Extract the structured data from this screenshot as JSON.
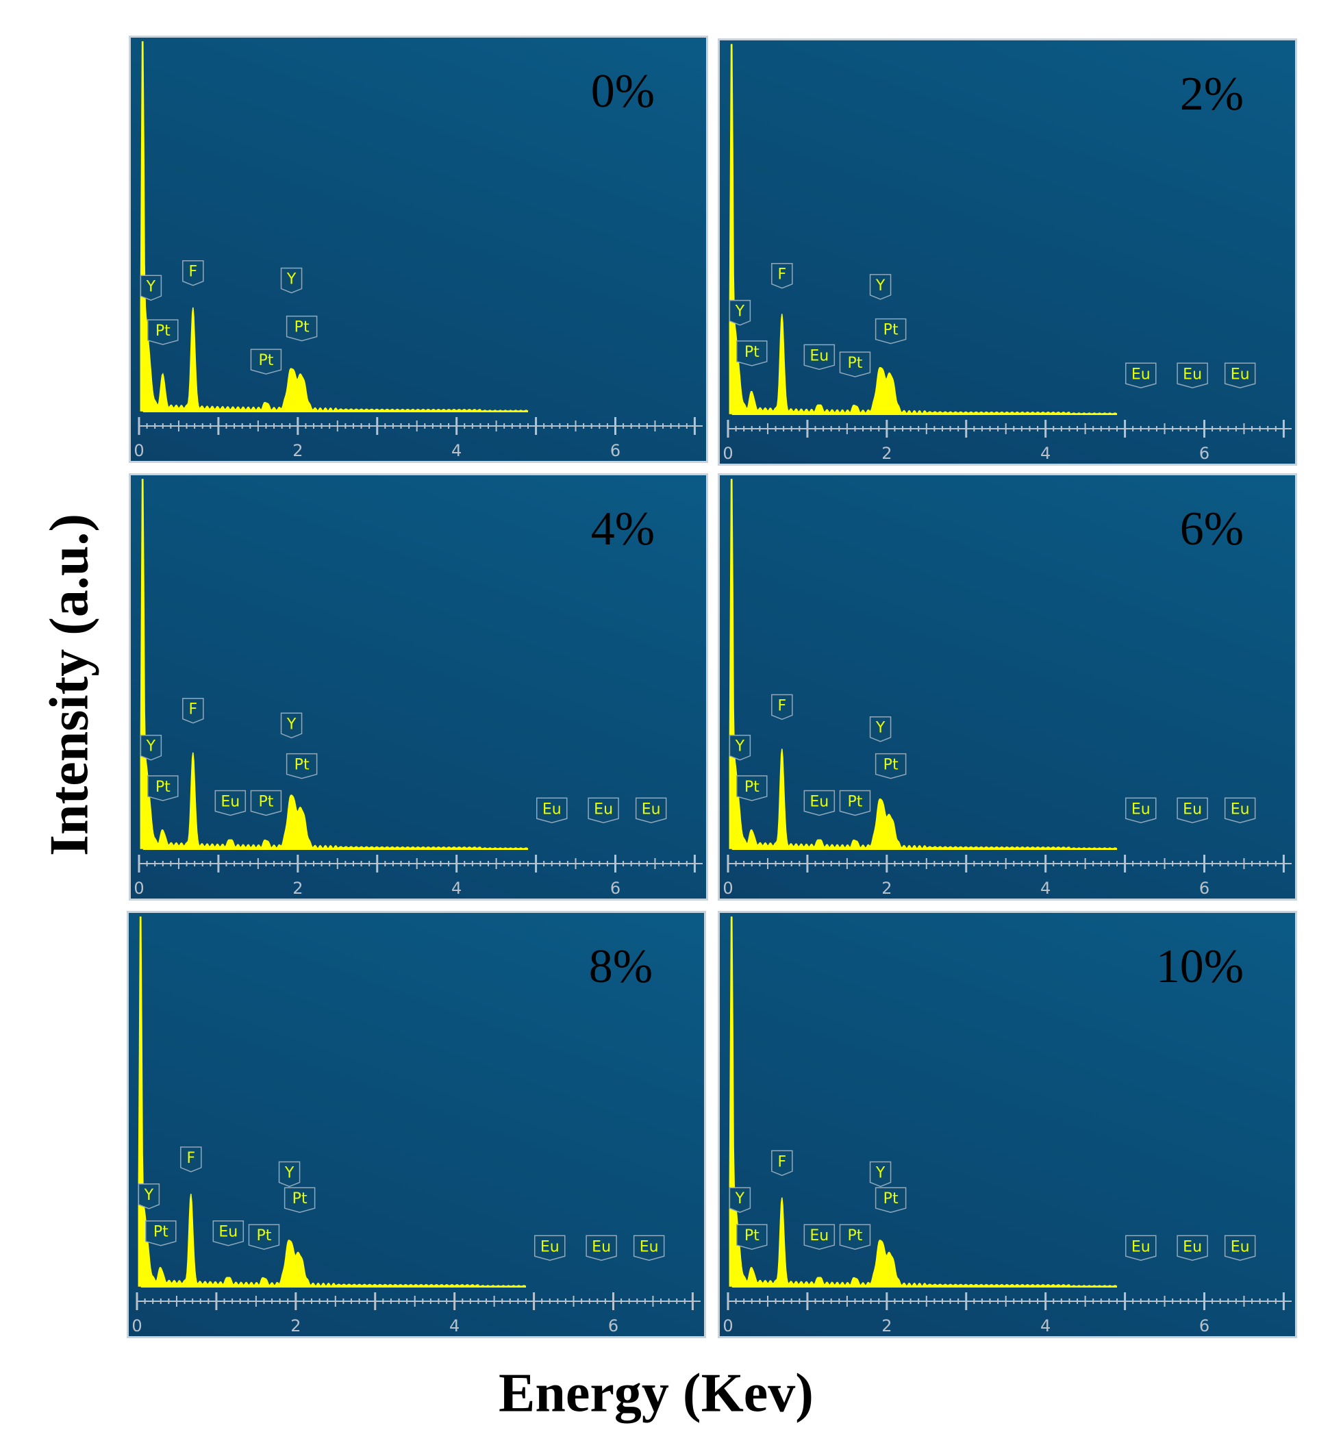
{
  "figure": {
    "ylabel": "Intensity (a.u.)",
    "xlabel": "Energy (Kev)"
  },
  "colors": {
    "panel_background": "#0a4f78",
    "spectrum": "#ffff00",
    "peak_label": "#e8ff00",
    "axis": "#b7c2cc"
  },
  "chart_data": [
    {
      "type": "area",
      "panel_label": "0%",
      "xlim": [
        0,
        7.1
      ],
      "x_ticks": [
        "0",
        "2",
        "4",
        "6"
      ],
      "peaks": [
        {
          "element": "Y",
          "energy": 0.08,
          "height": 0.24
        },
        {
          "element": "Pt",
          "energy": 0.3,
          "height": 0.09
        },
        {
          "element": "F",
          "energy": 0.68,
          "height": 0.27
        },
        {
          "element": "Pt",
          "energy": 1.6,
          "height": 0.02
        },
        {
          "element": "Y",
          "energy": 1.92,
          "height": 0.11
        },
        {
          "element": "Pt",
          "energy": 2.05,
          "height": 0.09
        }
      ],
      "labels": [
        {
          "text": "Y",
          "energy": 0.15,
          "height": 0.3
        },
        {
          "text": "Pt",
          "energy": 0.3,
          "height": 0.18
        },
        {
          "text": "F",
          "energy": 0.68,
          "height": 0.34
        },
        {
          "text": "Pt",
          "energy": 1.6,
          "height": 0.1
        },
        {
          "text": "Y",
          "energy": 1.92,
          "height": 0.32
        },
        {
          "text": "Pt",
          "energy": 2.05,
          "height": 0.19
        }
      ]
    },
    {
      "type": "area",
      "panel_label": "2%",
      "xlim": [
        0,
        7.1
      ],
      "x_ticks": [
        "0",
        "2",
        "4",
        "6"
      ],
      "peaks": [
        {
          "element": "Y",
          "energy": 0.08,
          "height": 0.22
        },
        {
          "element": "Pt",
          "energy": 0.3,
          "height": 0.05
        },
        {
          "element": "F",
          "energy": 0.68,
          "height": 0.26
        },
        {
          "element": "Eu",
          "energy": 1.15,
          "height": 0.02
        },
        {
          "element": "Pt",
          "energy": 1.6,
          "height": 0.02
        },
        {
          "element": "Y",
          "energy": 1.92,
          "height": 0.12
        },
        {
          "element": "Pt",
          "energy": 2.05,
          "height": 0.1
        },
        {
          "element": "Eu",
          "energy": 5.2,
          "height": 0.005
        },
        {
          "element": "Eu",
          "energy": 5.85,
          "height": 0.005
        },
        {
          "element": "Eu",
          "energy": 6.45,
          "height": 0.005
        }
      ],
      "labels": [
        {
          "text": "Y",
          "energy": 0.15,
          "height": 0.24
        },
        {
          "text": "Pt",
          "energy": 0.3,
          "height": 0.13
        },
        {
          "text": "F",
          "energy": 0.68,
          "height": 0.34
        },
        {
          "text": "Eu",
          "energy": 1.15,
          "height": 0.12
        },
        {
          "text": "Pt",
          "energy": 1.6,
          "height": 0.1
        },
        {
          "text": "Y",
          "energy": 1.92,
          "height": 0.31
        },
        {
          "text": "Pt",
          "energy": 2.05,
          "height": 0.19
        },
        {
          "text": "Eu",
          "energy": 5.2,
          "height": 0.07
        },
        {
          "text": "Eu",
          "energy": 5.85,
          "height": 0.07
        },
        {
          "text": "Eu",
          "energy": 6.45,
          "height": 0.07
        }
      ]
    },
    {
      "type": "area",
      "panel_label": "4%",
      "xlim": [
        0,
        7.1
      ],
      "x_ticks": [
        "0",
        "2",
        "4",
        "6"
      ],
      "peaks": [
        {
          "element": "Y",
          "energy": 0.08,
          "height": 0.22
        },
        {
          "element": "Pt",
          "energy": 0.3,
          "height": 0.04
        },
        {
          "element": "F",
          "energy": 0.68,
          "height": 0.25
        },
        {
          "element": "Eu",
          "energy": 1.15,
          "height": 0.02
        },
        {
          "element": "Pt",
          "energy": 1.6,
          "height": 0.02
        },
        {
          "element": "Y",
          "energy": 1.92,
          "height": 0.14
        },
        {
          "element": "Pt",
          "energy": 2.05,
          "height": 0.1
        },
        {
          "element": "Eu",
          "energy": 5.2,
          "height": 0.005
        },
        {
          "element": "Eu",
          "energy": 5.85,
          "height": 0.005
        },
        {
          "element": "Eu",
          "energy": 6.45,
          "height": 0.005
        }
      ],
      "labels": [
        {
          "text": "Y",
          "energy": 0.15,
          "height": 0.24
        },
        {
          "text": "Pt",
          "energy": 0.3,
          "height": 0.13
        },
        {
          "text": "F",
          "energy": 0.68,
          "height": 0.34
        },
        {
          "text": "Eu",
          "energy": 1.15,
          "height": 0.09
        },
        {
          "text": "Pt",
          "energy": 1.6,
          "height": 0.09
        },
        {
          "text": "Y",
          "energy": 1.92,
          "height": 0.3
        },
        {
          "text": "Pt",
          "energy": 2.05,
          "height": 0.19
        },
        {
          "text": "Eu",
          "energy": 5.2,
          "height": 0.07
        },
        {
          "text": "Eu",
          "energy": 5.85,
          "height": 0.07
        },
        {
          "text": "Eu",
          "energy": 6.45,
          "height": 0.07
        }
      ]
    },
    {
      "type": "area",
      "panel_label": "6%",
      "xlim": [
        0,
        7.1
      ],
      "x_ticks": [
        "0",
        "2",
        "4",
        "6"
      ],
      "peaks": [
        {
          "element": "Y",
          "energy": 0.08,
          "height": 0.22
        },
        {
          "element": "Pt",
          "energy": 0.3,
          "height": 0.04
        },
        {
          "element": "F",
          "energy": 0.68,
          "height": 0.26
        },
        {
          "element": "Eu",
          "energy": 1.15,
          "height": 0.02
        },
        {
          "element": "Pt",
          "energy": 1.6,
          "height": 0.02
        },
        {
          "element": "Y",
          "energy": 1.92,
          "height": 0.13
        },
        {
          "element": "Pt",
          "energy": 2.05,
          "height": 0.08
        },
        {
          "element": "Eu",
          "energy": 5.2,
          "height": 0.005
        },
        {
          "element": "Eu",
          "energy": 5.85,
          "height": 0.005
        },
        {
          "element": "Eu",
          "energy": 6.45,
          "height": 0.005
        }
      ],
      "labels": [
        {
          "text": "Y",
          "energy": 0.15,
          "height": 0.24
        },
        {
          "text": "Pt",
          "energy": 0.3,
          "height": 0.13
        },
        {
          "text": "F",
          "energy": 0.68,
          "height": 0.35
        },
        {
          "text": "Eu",
          "energy": 1.15,
          "height": 0.09
        },
        {
          "text": "Pt",
          "energy": 1.6,
          "height": 0.09
        },
        {
          "text": "Y",
          "energy": 1.92,
          "height": 0.29
        },
        {
          "text": "Pt",
          "energy": 2.05,
          "height": 0.19
        },
        {
          "text": "Eu",
          "energy": 5.2,
          "height": 0.07
        },
        {
          "text": "Eu",
          "energy": 5.85,
          "height": 0.07
        },
        {
          "text": "Eu",
          "energy": 6.45,
          "height": 0.07
        }
      ]
    },
    {
      "type": "area",
      "panel_label": "8%",
      "xlim": [
        0,
        7.1
      ],
      "x_ticks": [
        "0",
        "2",
        "4",
        "6"
      ],
      "peaks": [
        {
          "element": "Y",
          "energy": 0.08,
          "height": 0.2
        },
        {
          "element": "Pt",
          "energy": 0.3,
          "height": 0.04
        },
        {
          "element": "F",
          "energy": 0.68,
          "height": 0.24
        },
        {
          "element": "Eu",
          "energy": 1.15,
          "height": 0.02
        },
        {
          "element": "Pt",
          "energy": 1.6,
          "height": 0.02
        },
        {
          "element": "Y",
          "energy": 1.92,
          "height": 0.12
        },
        {
          "element": "Pt",
          "energy": 2.05,
          "height": 0.08
        },
        {
          "element": "Eu",
          "energy": 5.2,
          "height": 0.005
        },
        {
          "element": "Eu",
          "energy": 5.85,
          "height": 0.005
        },
        {
          "element": "Eu",
          "energy": 6.45,
          "height": 0.005
        }
      ],
      "labels": [
        {
          "text": "Y",
          "energy": 0.15,
          "height": 0.21
        },
        {
          "text": "Pt",
          "energy": 0.3,
          "height": 0.11
        },
        {
          "text": "F",
          "energy": 0.68,
          "height": 0.31
        },
        {
          "text": "Eu",
          "energy": 1.15,
          "height": 0.11
        },
        {
          "text": "Pt",
          "energy": 1.6,
          "height": 0.1
        },
        {
          "text": "Y",
          "energy": 1.92,
          "height": 0.27
        },
        {
          "text": "Pt",
          "energy": 2.05,
          "height": 0.2
        },
        {
          "text": "Eu",
          "energy": 5.2,
          "height": 0.07
        },
        {
          "text": "Eu",
          "energy": 5.85,
          "height": 0.07
        },
        {
          "text": "Eu",
          "energy": 6.45,
          "height": 0.07
        }
      ]
    },
    {
      "type": "area",
      "panel_label": "10%",
      "xlim": [
        0,
        7.1
      ],
      "x_ticks": [
        "0",
        "2",
        "4",
        "6"
      ],
      "peaks": [
        {
          "element": "Y",
          "energy": 0.08,
          "height": 0.22
        },
        {
          "element": "Pt",
          "energy": 0.3,
          "height": 0.04
        },
        {
          "element": "F",
          "energy": 0.68,
          "height": 0.23
        },
        {
          "element": "Eu",
          "energy": 1.15,
          "height": 0.02
        },
        {
          "element": "Pt",
          "energy": 1.6,
          "height": 0.02
        },
        {
          "element": "Y",
          "energy": 1.92,
          "height": 0.12
        },
        {
          "element": "Pt",
          "energy": 2.05,
          "height": 0.08
        },
        {
          "element": "Eu",
          "energy": 5.2,
          "height": 0.005
        },
        {
          "element": "Eu",
          "energy": 5.85,
          "height": 0.005
        },
        {
          "element": "Eu",
          "energy": 6.45,
          "height": 0.005
        }
      ],
      "labels": [
        {
          "text": "Y",
          "energy": 0.15,
          "height": 0.2
        },
        {
          "text": "Pt",
          "energy": 0.3,
          "height": 0.1
        },
        {
          "text": "F",
          "energy": 0.68,
          "height": 0.3
        },
        {
          "text": "Eu",
          "energy": 1.15,
          "height": 0.1
        },
        {
          "text": "Pt",
          "energy": 1.6,
          "height": 0.1
        },
        {
          "text": "Y",
          "energy": 1.92,
          "height": 0.27
        },
        {
          "text": "Pt",
          "energy": 2.05,
          "height": 0.2
        },
        {
          "text": "Eu",
          "energy": 5.2,
          "height": 0.07
        },
        {
          "text": "Eu",
          "energy": 5.85,
          "height": 0.07
        },
        {
          "text": "Eu",
          "energy": 6.45,
          "height": 0.07
        }
      ]
    }
  ]
}
